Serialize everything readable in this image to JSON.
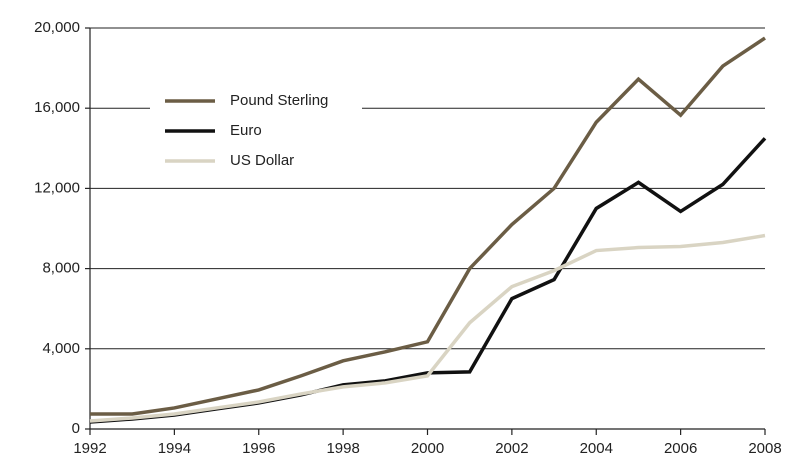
{
  "chart_data": {
    "type": "line",
    "x": [
      1992,
      1993,
      1994,
      1995,
      1996,
      1997,
      1998,
      1999,
      2000,
      2001,
      2002,
      2003,
      2004,
      2005,
      2006,
      2007,
      2008
    ],
    "series": [
      {
        "name": "Pound Sterling",
        "color": "#6b5d45",
        "values": [
          750,
          750,
          1050,
          1500,
          1950,
          2650,
          3400,
          3850,
          4350,
          8000,
          10200,
          12000,
          15300,
          17450,
          15650,
          18100,
          19500
        ]
      },
      {
        "name": "Euro",
        "color": "#111111",
        "values": [
          350,
          500,
          700,
          1000,
          1300,
          1700,
          2200,
          2400,
          2800,
          2850,
          6500,
          7450,
          11000,
          12300,
          10850,
          12200,
          14500
        ]
      },
      {
        "name": "US Dollar",
        "color": "#d9d4c3",
        "values": [
          400,
          550,
          750,
          1050,
          1350,
          1750,
          2100,
          2300,
          2650,
          5300,
          7100,
          7900,
          8900,
          9050,
          9100,
          9300,
          9650
        ]
      }
    ],
    "xlim": [
      1992,
      2008
    ],
    "xticks": [
      1992,
      1994,
      1996,
      1998,
      2000,
      2002,
      2004,
      2006,
      2008
    ],
    "ylim": [
      0,
      20000
    ],
    "yticks": [
      0,
      {
        "value": 4000,
        "label": "4,000"
      },
      {
        "value": 8000,
        "label": "8,000"
      },
      {
        "value": 12000,
        "label": "12,000"
      },
      {
        "value": 16000,
        "label": "16,000"
      },
      {
        "value": 20000,
        "label": "20,000"
      }
    ],
    "grid": true,
    "legend": "upper-left"
  }
}
